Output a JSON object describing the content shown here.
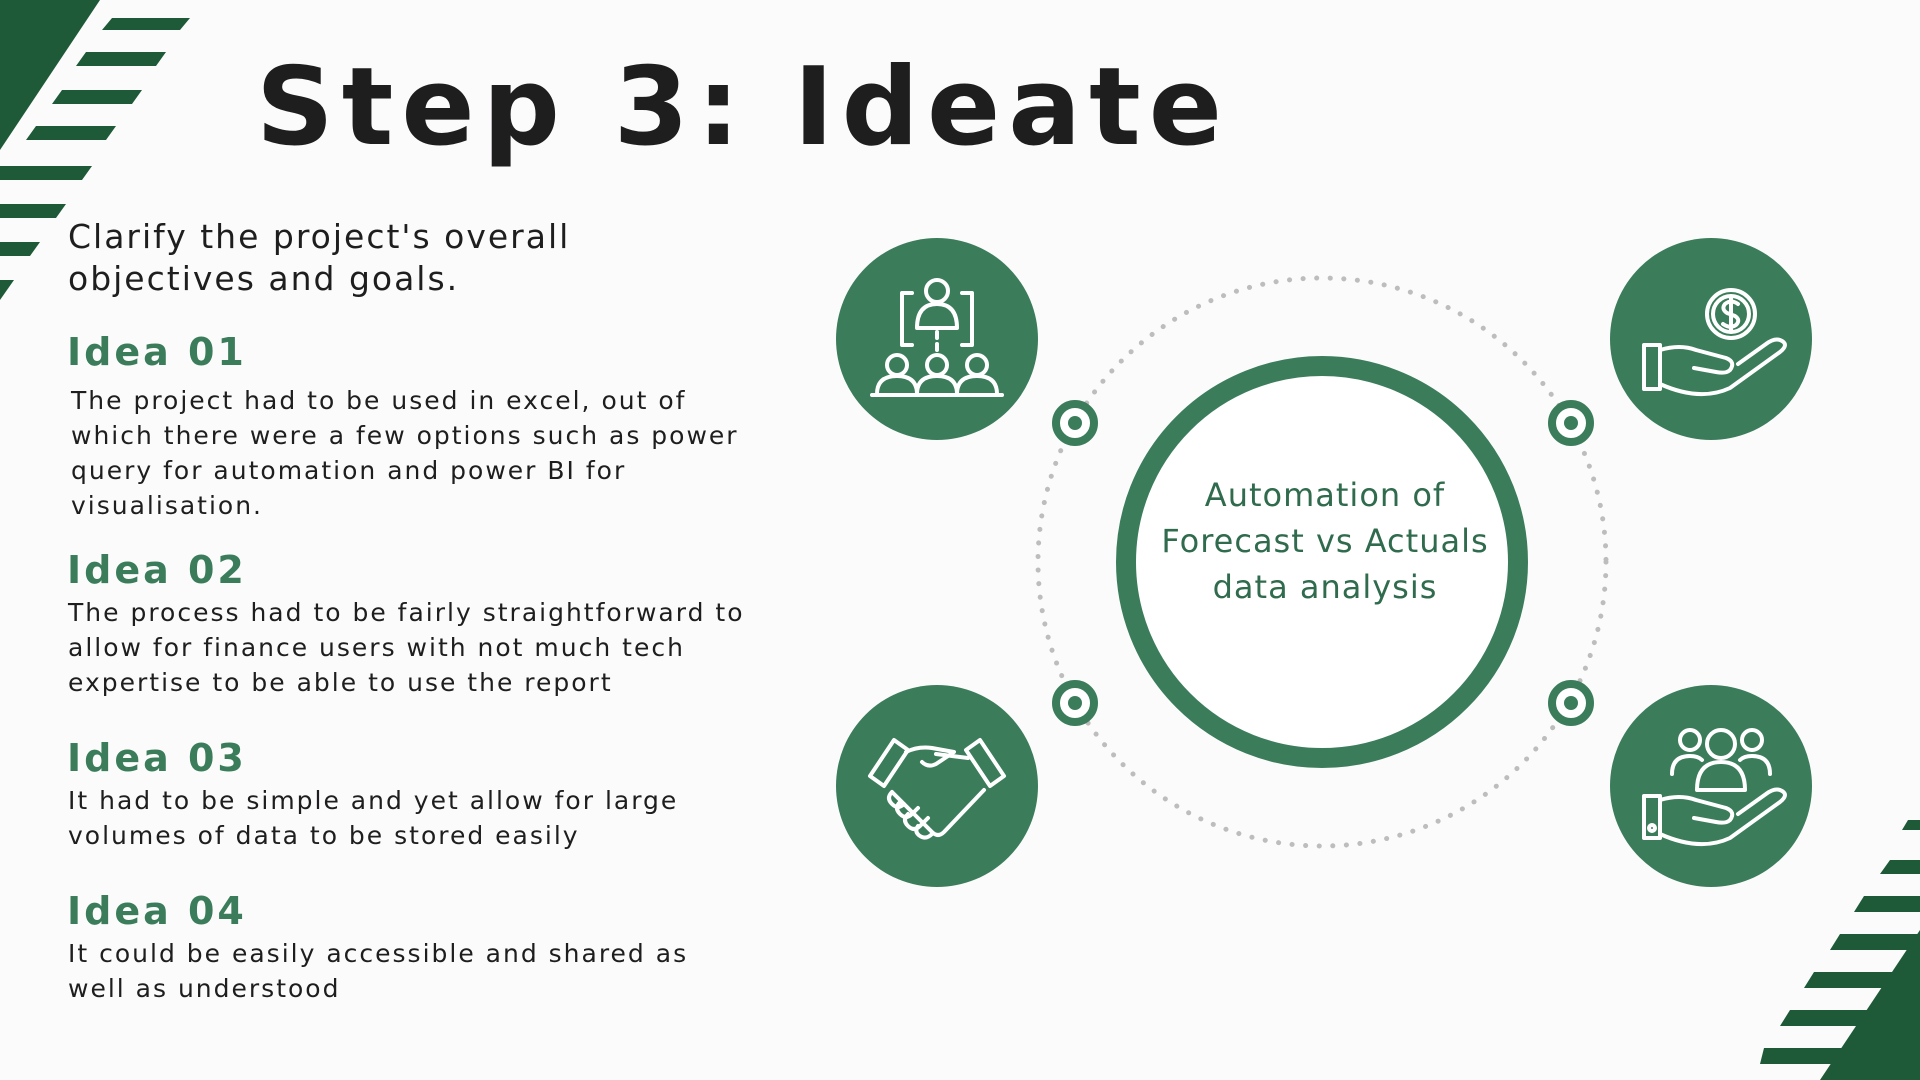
{
  "slide": {
    "title": "Step 3: Ideate",
    "subtitle": "Clarify the project's overall objectives and goals.",
    "ideas": [
      {
        "heading": "Idea 01",
        "body": "The project had to be used in excel, out of which there were a few options such as power query for automation and power BI for visualisation."
      },
      {
        "heading": "Idea 02",
        "body": "The process had to be fairly straightforward to allow for finance users with not much tech expertise to be able to use the report"
      },
      {
        "heading": "Idea 03",
        "body": "It had to be simple and yet allow for large volumes of data to be stored easily"
      },
      {
        "heading": "Idea 04",
        "body": "It could be easily accessible and shared as well as understood"
      }
    ],
    "center_label": "Automation of Forecast vs Actuals data analysis"
  },
  "icons": {
    "top_left": "team-hierarchy-icon",
    "top_right": "money-in-hand-icon",
    "bottom_left": "handshake-icon",
    "bottom_right": "people-in-hand-icon"
  },
  "colors": {
    "brand_green": "#3b7d5b",
    "dark_green": "#1e5a38",
    "title_text": "#1e1e1e",
    "background": "#fcfbfc",
    "dotted_ring": "#bdbdbd"
  }
}
